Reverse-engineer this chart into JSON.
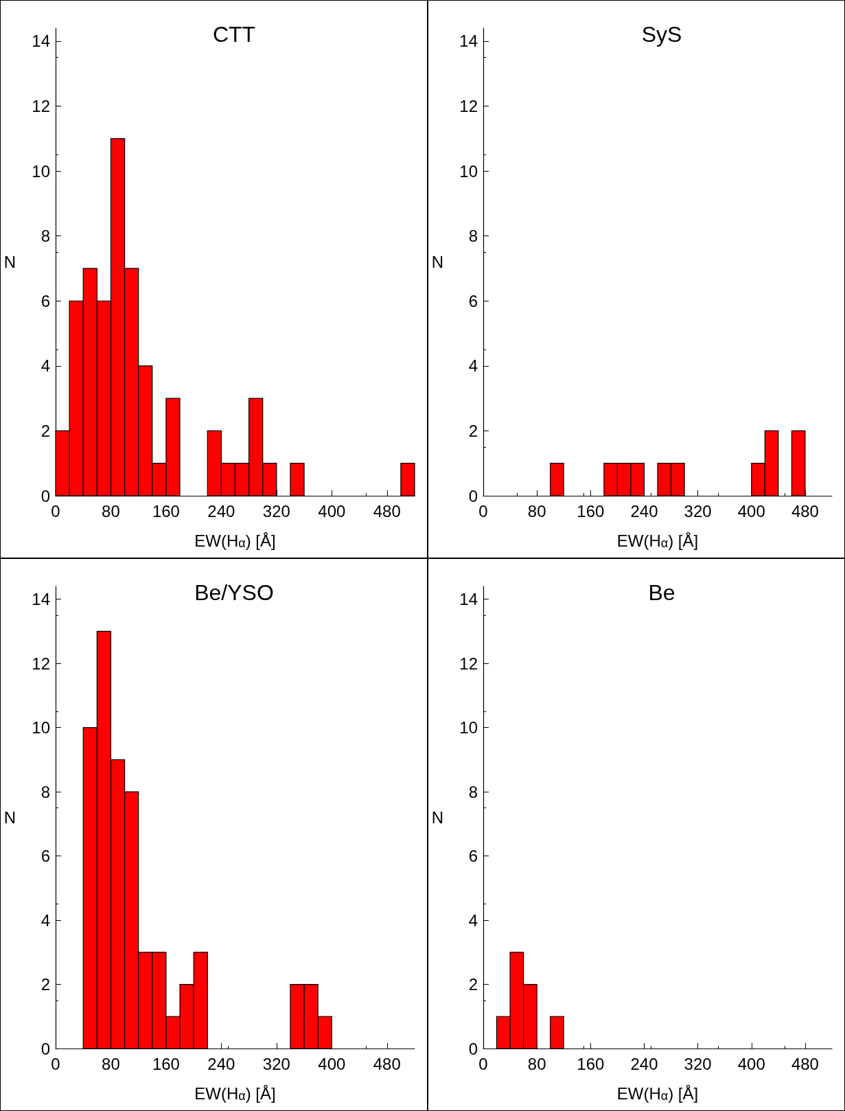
{
  "chart_data": [
    {
      "type": "histogram",
      "title": "CTT",
      "xlabel": "EW(H$_{α}$) [Å]",
      "ylabel": "N",
      "color": "#ff0000",
      "grid": false,
      "xlim": [
        0,
        520
      ],
      "xticks": [
        0,
        80,
        160,
        240,
        320,
        400,
        480
      ],
      "ylim": [
        0,
        14.4
      ],
      "yticks": [
        0,
        2,
        4,
        6,
        8,
        10,
        12,
        14
      ],
      "bins": [
        0,
        20,
        40,
        60,
        80,
        100,
        120,
        140,
        160,
        180,
        200,
        220,
        240,
        260,
        280,
        300,
        320,
        340,
        360,
        380,
        400,
        420,
        440,
        460,
        480,
        500,
        520
      ],
      "values": [
        2,
        6,
        7,
        6,
        11,
        7,
        4,
        1,
        3,
        0,
        0,
        2,
        1,
        1,
        3,
        1,
        0,
        1,
        0,
        0,
        0,
        0,
        0,
        0,
        0,
        1
      ]
    },
    {
      "type": "histogram",
      "title": "SyS",
      "xlabel": "EW(H$_{α}$) [Å]",
      "ylabel": "N",
      "color": "#ff0000",
      "grid": false,
      "xlim": [
        0,
        520
      ],
      "xticks": [
        0,
        80,
        160,
        240,
        320,
        400,
        480
      ],
      "ylim": [
        0,
        14.4
      ],
      "yticks": [
        0,
        2,
        4,
        6,
        8,
        10,
        12,
        14
      ],
      "bins": [
        0,
        20,
        40,
        60,
        80,
        100,
        120,
        140,
        160,
        180,
        200,
        220,
        240,
        260,
        280,
        300,
        320,
        340,
        360,
        380,
        400,
        420,
        440,
        460,
        480,
        500,
        520
      ],
      "values": [
        0,
        0,
        0,
        0,
        0,
        1,
        0,
        0,
        0,
        1,
        1,
        1,
        0,
        1,
        1,
        0,
        0,
        0,
        0,
        0,
        1,
        2,
        0,
        2,
        0,
        0
      ]
    },
    {
      "type": "histogram",
      "title": "Be/YSO",
      "xlabel": "EW(H$_{α}$) [Å]",
      "ylabel": "N",
      "color": "#ff0000",
      "grid": false,
      "xlim": [
        0,
        520
      ],
      "xticks": [
        0,
        80,
        160,
        240,
        320,
        400,
        480
      ],
      "ylim": [
        0,
        14.4
      ],
      "yticks": [
        0,
        2,
        4,
        6,
        8,
        10,
        12,
        14
      ],
      "bins": [
        0,
        20,
        40,
        60,
        80,
        100,
        120,
        140,
        160,
        180,
        200,
        220,
        240,
        260,
        280,
        300,
        320,
        340,
        360,
        380,
        400,
        420,
        440,
        460,
        480,
        500,
        520
      ],
      "values": [
        0,
        0,
        10,
        13,
        9,
        8,
        3,
        3,
        1,
        2,
        3,
        0,
        0,
        0,
        0,
        0,
        0,
        2,
        2,
        1,
        0,
        0,
        0,
        0,
        0,
        0
      ]
    },
    {
      "type": "histogram",
      "title": "Be",
      "xlabel": "EW(H$_{α}$) [Å]",
      "ylabel": "N",
      "color": "#ff0000",
      "grid": false,
      "xlim": [
        0,
        520
      ],
      "xticks": [
        0,
        80,
        160,
        240,
        320,
        400,
        480
      ],
      "ylim": [
        0,
        14.4
      ],
      "yticks": [
        0,
        2,
        4,
        6,
        8,
        10,
        12,
        14
      ],
      "bins": [
        0,
        20,
        40,
        60,
        80,
        100,
        120,
        140,
        160,
        180,
        200,
        220,
        240,
        260,
        280,
        300,
        320,
        340,
        360,
        380,
        400,
        420,
        440,
        460,
        480,
        500,
        520
      ],
      "values": [
        0,
        1,
        3,
        2,
        0,
        1,
        0,
        0,
        0,
        0,
        0,
        0,
        0,
        0,
        0,
        0,
        0,
        0,
        0,
        0,
        0,
        0,
        0,
        0,
        0,
        0
      ]
    }
  ]
}
